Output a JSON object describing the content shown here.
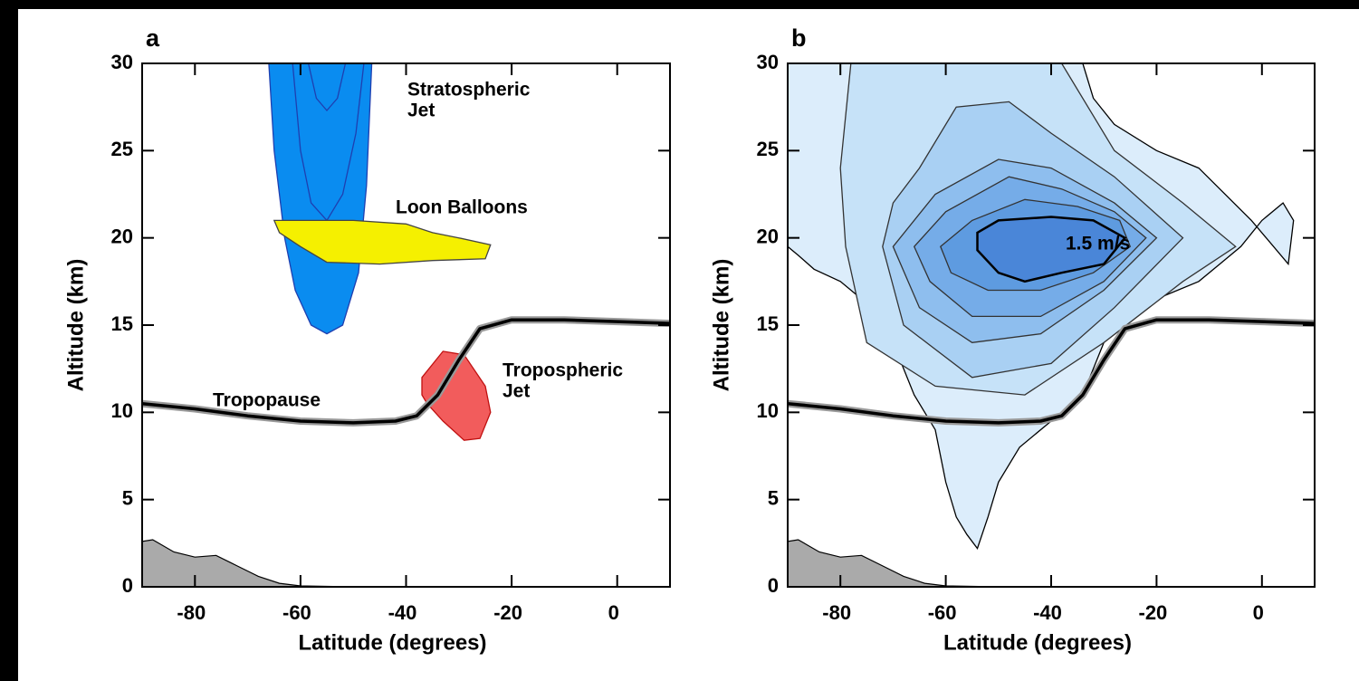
{
  "chart_data": [
    {
      "type": "contour",
      "title": "a",
      "xlabel": "Latitude (degrees)",
      "ylabel": "Altitude (km)",
      "xlim": [
        -90,
        10
      ],
      "ylim": [
        0,
        30
      ],
      "xticks": [
        -80,
        -60,
        -40,
        -20,
        0
      ],
      "yticks": [
        0,
        5,
        10,
        15,
        20,
        25,
        30
      ],
      "regions": [
        {
          "label": [
            "Stratospheric",
            "Jet"
          ],
          "label_color": "#1414e6",
          "fill": "#0a8cf0",
          "stroke": "#1f3fb0",
          "x": [
            -66,
            -65,
            -63,
            -61,
            -58,
            -55,
            -52,
            -49,
            -47.5,
            -46.5
          ],
          "y": [
            30,
            25,
            20,
            17,
            15,
            14.5,
            15,
            18,
            23,
            30
          ]
        },
        {
          "stroke": "#1f3fb0",
          "x": [
            -61.5,
            -60,
            -58,
            -55,
            -52,
            -49.5,
            -48
          ],
          "y": [
            30,
            25,
            22,
            21,
            22.5,
            26,
            30
          ]
        },
        {
          "stroke": "#1f3fb0",
          "x": [
            -58.5,
            -57,
            -55,
            -53,
            -51.5
          ],
          "y": [
            30,
            28,
            27.3,
            28,
            30
          ]
        },
        {
          "label": [
            "Loon Balloons"
          ],
          "label_color": "#000000",
          "fill": "#f5f000",
          "stroke": "#444444",
          "x": [
            -65,
            -50,
            -40,
            -35,
            -30,
            -24,
            -25,
            -35,
            -45,
            -55,
            -60,
            -64
          ],
          "y": [
            21,
            21,
            20.8,
            20.3,
            20,
            19.6,
            18.8,
            18.7,
            18.5,
            18.6,
            19.5,
            20.3
          ]
        },
        {
          "label": [
            "Tropospheric",
            "Jet"
          ],
          "label_color": "#e61414",
          "fill": "#f25c5c",
          "stroke": "#c01010",
          "x": [
            -37,
            -33,
            -29,
            -25,
            -24,
            -26,
            -29,
            -33,
            -36,
            -37
          ],
          "y": [
            12,
            13.5,
            13.3,
            11.5,
            10,
            8.5,
            8.4,
            9.5,
            10.5,
            11
          ]
        }
      ],
      "series": [
        {
          "color": "#aaaaaa",
          "fill": true,
          "x": [
            -90,
            -88,
            -84,
            -80,
            -76,
            -72,
            -68,
            -64,
            -60,
            -50,
            -40,
            -20,
            10
          ],
          "values": [
            2.6,
            2.7,
            2.0,
            1.7,
            1.8,
            1.2,
            0.6,
            0.2,
            0.05,
            0,
            0,
            0,
            0
          ]
        },
        {
          "name": "Tropopause",
          "color": "#000000",
          "x": [
            -90,
            -80,
            -70,
            -60,
            -50,
            -42,
            -38,
            -34,
            -30,
            -26,
            -20,
            -10,
            0,
            10
          ],
          "values": [
            10.5,
            10.2,
            9.8,
            9.5,
            9.4,
            9.5,
            9.8,
            11,
            13,
            14.8,
            15.3,
            15.3,
            15.2,
            15.1
          ]
        }
      ]
    },
    {
      "type": "contour",
      "title": "b",
      "xlabel": "Latitude (degrees)",
      "ylabel": "Altitude (km)",
      "xlim": [
        -90,
        10
      ],
      "ylim": [
        0,
        30
      ],
      "xticks": [
        -80,
        -60,
        -40,
        -20,
        0
      ],
      "yticks": [
        0,
        5,
        10,
        15,
        20,
        25,
        30
      ],
      "regions": [
        {
          "fill": "#dcedfb",
          "stroke": "#000000",
          "x": [
            -90,
            -88,
            -85,
            -80,
            -76,
            -70,
            -66,
            -62,
            -60,
            -58,
            -56,
            -54,
            -52,
            -50,
            -46,
            -40,
            -34,
            -30,
            -26,
            -20,
            -12,
            -8,
            -4,
            0,
            4,
            6,
            5,
            -2,
            -12,
            -20,
            -28,
            -32,
            -34,
            -90
          ],
          "y": [
            19.5,
            19,
            18.2,
            17.5,
            16.5,
            14,
            11,
            9,
            6,
            4,
            3,
            2.2,
            4,
            6,
            8,
            9.5,
            11,
            14,
            15.5,
            16.5,
            17.5,
            18.5,
            19.5,
            21,
            22,
            21,
            18.5,
            21,
            24,
            25,
            26.5,
            28,
            30,
            30
          ]
        },
        {
          "fill": "#c6e2f8",
          "stroke": "#333333",
          "x": [
            -78,
            -80,
            -79,
            -75,
            -62,
            -45,
            -30,
            -15,
            -5,
            -15,
            -28,
            -38
          ],
          "y": [
            30,
            24,
            19.5,
            14,
            11.5,
            11,
            14,
            17.5,
            19.5,
            22,
            25,
            30
          ]
        },
        {
          "fill": "#a9d0f3",
          "stroke": "#333333",
          "x": [
            -70,
            -65,
            -58,
            -48,
            -40,
            -28,
            -15,
            -28,
            -40,
            -55,
            -68,
            -72
          ],
          "y": [
            22,
            24,
            27.5,
            27.8,
            26,
            23.5,
            20,
            16,
            12.8,
            12,
            15,
            19.5
          ]
        },
        {
          "fill": "#8ebeee",
          "stroke": "#333333",
          "x": [
            -70,
            -62,
            -50,
            -40,
            -28,
            -20,
            -30,
            -42,
            -55,
            -65
          ],
          "y": [
            19.5,
            22.5,
            24.5,
            24,
            22,
            20,
            17,
            14.5,
            14,
            16
          ]
        },
        {
          "fill": "#75ace8",
          "stroke": "#333333",
          "x": [
            -66,
            -60,
            -48,
            -38,
            -28,
            -22,
            -30,
            -42,
            -55,
            -63
          ],
          "y": [
            19.5,
            21.5,
            23.5,
            22.8,
            21.5,
            20,
            17.5,
            15.5,
            15.5,
            17.5
          ]
        },
        {
          "fill": "#5e9be0",
          "stroke": "#333333",
          "x": [
            -61,
            -55,
            -45,
            -35,
            -27,
            -25,
            -32,
            -42,
            -52,
            -59
          ],
          "y": [
            19.5,
            21,
            22.2,
            21.8,
            21,
            19.5,
            18,
            17,
            17,
            18
          ]
        },
        {
          "label": [
            "1.5 m/s"
          ],
          "label_color": "#ffffff",
          "fill": "#4a86d8",
          "stroke": "#000000",
          "x": [
            -54,
            -50,
            -40,
            -32,
            -26,
            -30,
            -38,
            -45,
            -50,
            -54
          ],
          "y": [
            20.3,
            21,
            21.2,
            21,
            20,
            18.5,
            18,
            17.5,
            18,
            19.3
          ]
        }
      ],
      "series": [
        {
          "color": "#aaaaaa",
          "fill": true,
          "x": [
            -90,
            -88,
            -84,
            -80,
            -76,
            -72,
            -68,
            -64,
            -60,
            -50,
            -40,
            -20,
            10
          ],
          "values": [
            2.6,
            2.7,
            2.0,
            1.7,
            1.8,
            1.2,
            0.6,
            0.2,
            0.05,
            0,
            0,
            0,
            0
          ]
        },
        {
          "color": "#000000",
          "x": [
            -90,
            -80,
            -70,
            -60,
            -50,
            -42,
            -38,
            -34,
            -30,
            -26,
            -20,
            -10,
            0,
            10
          ],
          "values": [
            10.5,
            10.2,
            9.8,
            9.5,
            9.4,
            9.5,
            9.8,
            11,
            13,
            14.8,
            15.3,
            15.3,
            15.2,
            15.1
          ]
        }
      ]
    }
  ]
}
